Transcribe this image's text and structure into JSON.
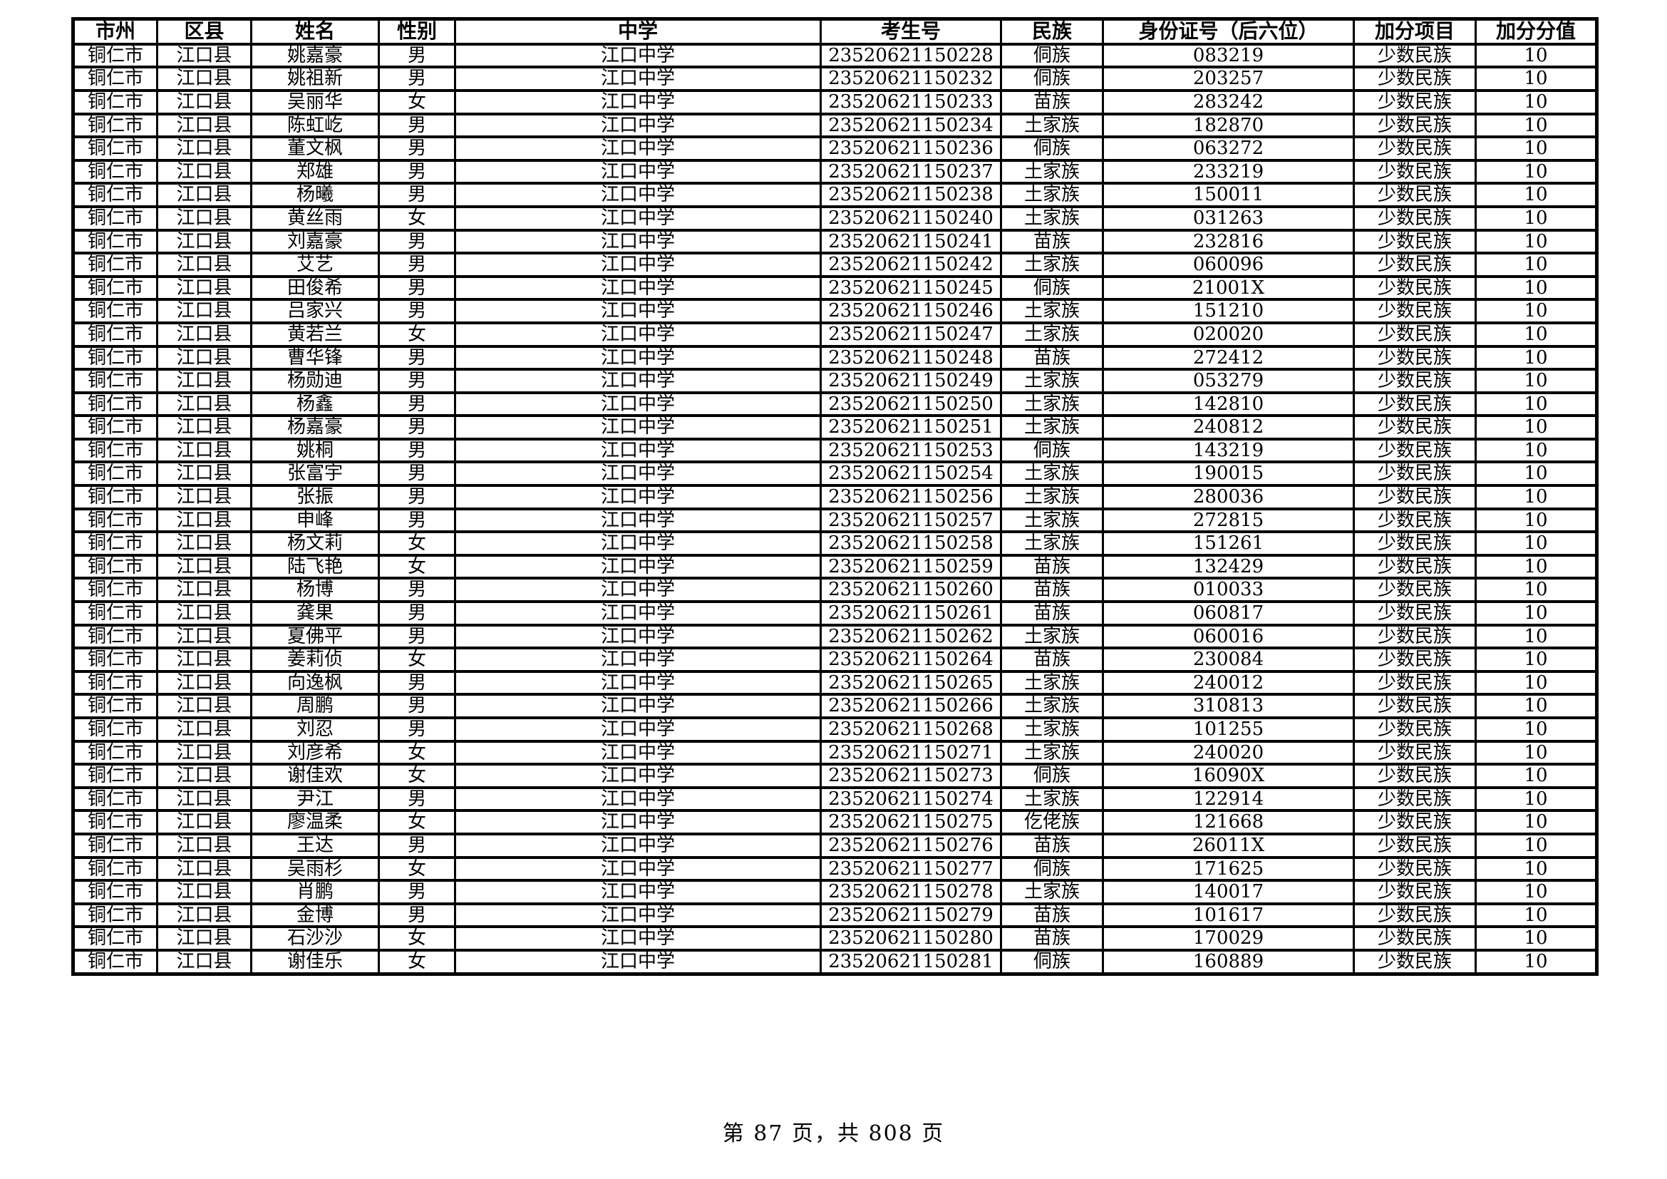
{
  "colors": {
    "text": "#000000",
    "background": "#ffffff",
    "border": "#000000"
  },
  "table": {
    "columns": [
      "市州",
      "区县",
      "姓名",
      "性别",
      "中学",
      "考生号",
      "民族",
      "身份证号（后六位）",
      "加分项目",
      "加分分值"
    ],
    "rows": [
      [
        "铜仁市",
        "江口县",
        "姚嘉豪",
        "男",
        "江口中学",
        "23520621150228",
        "侗族",
        "083219",
        "少数民族",
        "10"
      ],
      [
        "铜仁市",
        "江口县",
        "姚祖新",
        "男",
        "江口中学",
        "23520621150232",
        "侗族",
        "203257",
        "少数民族",
        "10"
      ],
      [
        "铜仁市",
        "江口县",
        "吴丽华",
        "女",
        "江口中学",
        "23520621150233",
        "苗族",
        "283242",
        "少数民族",
        "10"
      ],
      [
        "铜仁市",
        "江口县",
        "陈虹屹",
        "男",
        "江口中学",
        "23520621150234",
        "土家族",
        "182870",
        "少数民族",
        "10"
      ],
      [
        "铜仁市",
        "江口县",
        "董文枫",
        "男",
        "江口中学",
        "23520621150236",
        "侗族",
        "063272",
        "少数民族",
        "10"
      ],
      [
        "铜仁市",
        "江口县",
        "郑雄",
        "男",
        "江口中学",
        "23520621150237",
        "土家族",
        "233219",
        "少数民族",
        "10"
      ],
      [
        "铜仁市",
        "江口县",
        "杨曦",
        "男",
        "江口中学",
        "23520621150238",
        "土家族",
        "150011",
        "少数民族",
        "10"
      ],
      [
        "铜仁市",
        "江口县",
        "黄丝雨",
        "女",
        "江口中学",
        "23520621150240",
        "土家族",
        "031263",
        "少数民族",
        "10"
      ],
      [
        "铜仁市",
        "江口县",
        "刘嘉豪",
        "男",
        "江口中学",
        "23520621150241",
        "苗族",
        "232816",
        "少数民族",
        "10"
      ],
      [
        "铜仁市",
        "江口县",
        "艾艺",
        "男",
        "江口中学",
        "23520621150242",
        "土家族",
        "060096",
        "少数民族",
        "10"
      ],
      [
        "铜仁市",
        "江口县",
        "田俊希",
        "男",
        "江口中学",
        "23520621150245",
        "侗族",
        "21001X",
        "少数民族",
        "10"
      ],
      [
        "铜仁市",
        "江口县",
        "吕家兴",
        "男",
        "江口中学",
        "23520621150246",
        "土家族",
        "151210",
        "少数民族",
        "10"
      ],
      [
        "铜仁市",
        "江口县",
        "黄若兰",
        "女",
        "江口中学",
        "23520621150247",
        "土家族",
        "020020",
        "少数民族",
        "10"
      ],
      [
        "铜仁市",
        "江口县",
        "曹华锋",
        "男",
        "江口中学",
        "23520621150248",
        "苗族",
        "272412",
        "少数民族",
        "10"
      ],
      [
        "铜仁市",
        "江口县",
        "杨勋迪",
        "男",
        "江口中学",
        "23520621150249",
        "土家族",
        "053279",
        "少数民族",
        "10"
      ],
      [
        "铜仁市",
        "江口县",
        "杨鑫",
        "男",
        "江口中学",
        "23520621150250",
        "土家族",
        "142810",
        "少数民族",
        "10"
      ],
      [
        "铜仁市",
        "江口县",
        "杨嘉豪",
        "男",
        "江口中学",
        "23520621150251",
        "土家族",
        "240812",
        "少数民族",
        "10"
      ],
      [
        "铜仁市",
        "江口县",
        "姚桐",
        "男",
        "江口中学",
        "23520621150253",
        "侗族",
        "143219",
        "少数民族",
        "10"
      ],
      [
        "铜仁市",
        "江口县",
        "张富宇",
        "男",
        "江口中学",
        "23520621150254",
        "土家族",
        "190015",
        "少数民族",
        "10"
      ],
      [
        "铜仁市",
        "江口县",
        "张振",
        "男",
        "江口中学",
        "23520621150256",
        "土家族",
        "280036",
        "少数民族",
        "10"
      ],
      [
        "铜仁市",
        "江口县",
        "申峰",
        "男",
        "江口中学",
        "23520621150257",
        "土家族",
        "272815",
        "少数民族",
        "10"
      ],
      [
        "铜仁市",
        "江口县",
        "杨文莉",
        "女",
        "江口中学",
        "23520621150258",
        "土家族",
        "151261",
        "少数民族",
        "10"
      ],
      [
        "铜仁市",
        "江口县",
        "陆飞艳",
        "女",
        "江口中学",
        "23520621150259",
        "苗族",
        "132429",
        "少数民族",
        "10"
      ],
      [
        "铜仁市",
        "江口县",
        "杨博",
        "男",
        "江口中学",
        "23520621150260",
        "苗族",
        "010033",
        "少数民族",
        "10"
      ],
      [
        "铜仁市",
        "江口县",
        "龚果",
        "男",
        "江口中学",
        "23520621150261",
        "苗族",
        "060817",
        "少数民族",
        "10"
      ],
      [
        "铜仁市",
        "江口县",
        "夏佛平",
        "男",
        "江口中学",
        "23520621150262",
        "土家族",
        "060016",
        "少数民族",
        "10"
      ],
      [
        "铜仁市",
        "江口县",
        "姜莉侦",
        "女",
        "江口中学",
        "23520621150264",
        "苗族",
        "230084",
        "少数民族",
        "10"
      ],
      [
        "铜仁市",
        "江口县",
        "向逸枫",
        "男",
        "江口中学",
        "23520621150265",
        "土家族",
        "240012",
        "少数民族",
        "10"
      ],
      [
        "铜仁市",
        "江口县",
        "周鹏",
        "男",
        "江口中学",
        "23520621150266",
        "土家族",
        "310813",
        "少数民族",
        "10"
      ],
      [
        "铜仁市",
        "江口县",
        "刘忍",
        "男",
        "江口中学",
        "23520621150268",
        "土家族",
        "101255",
        "少数民族",
        "10"
      ],
      [
        "铜仁市",
        "江口县",
        "刘彦希",
        "女",
        "江口中学",
        "23520621150271",
        "土家族",
        "240020",
        "少数民族",
        "10"
      ],
      [
        "铜仁市",
        "江口县",
        "谢佳欢",
        "女",
        "江口中学",
        "23520621150273",
        "侗族",
        "16090X",
        "少数民族",
        "10"
      ],
      [
        "铜仁市",
        "江口县",
        "尹江",
        "男",
        "江口中学",
        "23520621150274",
        "土家族",
        "122914",
        "少数民族",
        "10"
      ],
      [
        "铜仁市",
        "江口县",
        "廖温柔",
        "女",
        "江口中学",
        "23520621150275",
        "仡佬族",
        "121668",
        "少数民族",
        "10"
      ],
      [
        "铜仁市",
        "江口县",
        "王达",
        "男",
        "江口中学",
        "23520621150276",
        "苗族",
        "26011X",
        "少数民族",
        "10"
      ],
      [
        "铜仁市",
        "江口县",
        "吴雨杉",
        "女",
        "江口中学",
        "23520621150277",
        "侗族",
        "171625",
        "少数民族",
        "10"
      ],
      [
        "铜仁市",
        "江口县",
        "肖鹏",
        "男",
        "江口中学",
        "23520621150278",
        "土家族",
        "140017",
        "少数民族",
        "10"
      ],
      [
        "铜仁市",
        "江口县",
        "金博",
        "男",
        "江口中学",
        "23520621150279",
        "苗族",
        "101617",
        "少数民族",
        "10"
      ],
      [
        "铜仁市",
        "江口县",
        "石沙沙",
        "女",
        "江口中学",
        "23520621150280",
        "苗族",
        "170029",
        "少数民族",
        "10"
      ],
      [
        "铜仁市",
        "江口县",
        "谢佳乐",
        "女",
        "江口中学",
        "23520621150281",
        "侗族",
        "160889",
        "少数民族",
        "10"
      ]
    ]
  },
  "footer": {
    "page_text": "第 87 页，共 808 页"
  }
}
